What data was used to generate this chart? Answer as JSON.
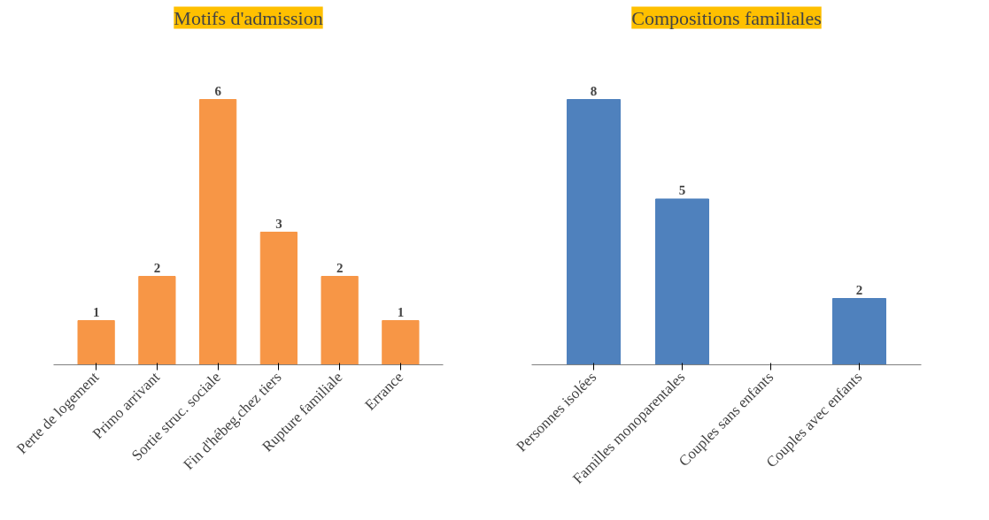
{
  "chart_data": [
    {
      "type": "bar",
      "title": "Motifs d'admission",
      "categories": [
        "Perte de logement",
        "Primo arrivant",
        "Sortie struc. sociale",
        "Fin d'hébeg.chez tiers",
        "Rupture familiale",
        "Errance"
      ],
      "values": [
        1,
        2,
        6,
        3,
        2,
        1
      ],
      "color": "#f79646",
      "data_labels": true
    },
    {
      "type": "bar",
      "title": "Compositions familiales",
      "categories": [
        "Personnes isolées",
        "Familles monoparentales",
        "Couples sans enfants",
        "Couples avec enfants"
      ],
      "values": [
        8,
        5,
        0,
        2
      ],
      "color": "#4f81bd",
      "value_labels": [
        "8",
        "5",
        null,
        "2"
      ]
    }
  ]
}
